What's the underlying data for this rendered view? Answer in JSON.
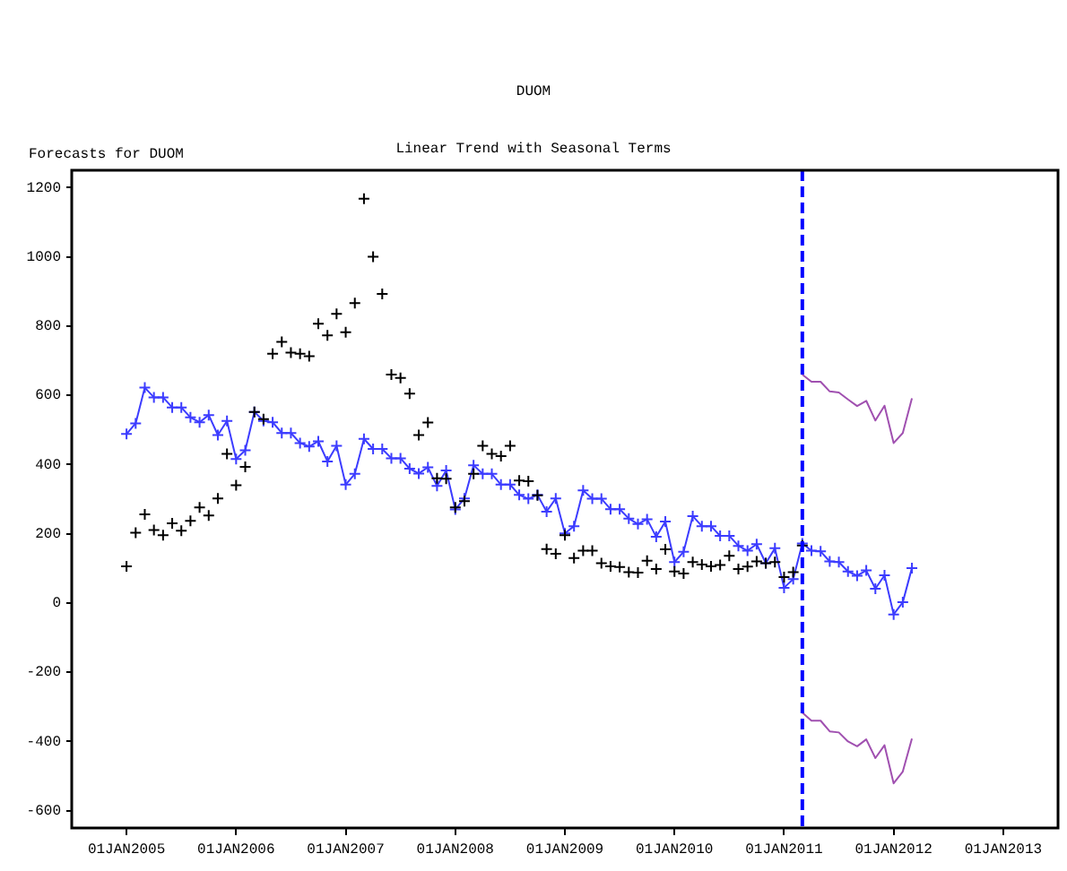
{
  "chart_data": {
    "type": "line",
    "title": "DUOM",
    "subtitle": "Linear Trend with Seasonal Terms",
    "ylabel": "Forecasts for DUOM",
    "x": [
      "2005-01",
      "2005-02",
      "2005-03",
      "2005-04",
      "2005-05",
      "2005-06",
      "2005-07",
      "2005-08",
      "2005-09",
      "2005-10",
      "2005-11",
      "2005-12",
      "2006-01",
      "2006-02",
      "2006-03",
      "2006-04",
      "2006-05",
      "2006-06",
      "2006-07",
      "2006-08",
      "2006-09",
      "2006-10",
      "2006-11",
      "2006-12",
      "2007-01",
      "2007-02",
      "2007-03",
      "2007-04",
      "2007-05",
      "2007-06",
      "2007-07",
      "2007-08",
      "2007-09",
      "2007-10",
      "2007-11",
      "2007-12",
      "2008-01",
      "2008-02",
      "2008-03",
      "2008-04",
      "2008-05",
      "2008-06",
      "2008-07",
      "2008-08",
      "2008-09",
      "2008-10",
      "2008-11",
      "2008-12",
      "2009-01",
      "2009-02",
      "2009-03",
      "2009-04",
      "2009-05",
      "2009-06",
      "2009-07",
      "2009-08",
      "2009-09",
      "2009-10",
      "2009-11",
      "2009-12",
      "2010-01",
      "2010-02",
      "2010-03",
      "2010-04",
      "2010-05",
      "2010-06",
      "2010-07",
      "2010-08",
      "2010-09",
      "2010-10",
      "2010-11",
      "2010-12",
      "2011-01",
      "2011-02",
      "2011-03",
      "2011-04",
      "2011-05",
      "2011-06",
      "2011-07",
      "2011-08",
      "2011-09",
      "2011-10",
      "2011-11",
      "2011-12",
      "2012-01",
      "2012-02",
      "2012-03"
    ],
    "series": [
      {
        "type": "scatter",
        "marker": "cross",
        "color": "#000000",
        "values": [
          106,
          203,
          256,
          211,
          196,
          230,
          209,
          237,
          276,
          253,
          302,
          431,
          340,
          393,
          552,
          531,
          720,
          754,
          723,
          720,
          713,
          807,
          773,
          835,
          782,
          866,
          1168,
          1000,
          893,
          660,
          650,
          605,
          485,
          521,
          360,
          359,
          276,
          294,
          373,
          454,
          431,
          424,
          454,
          354,
          352,
          311,
          156,
          142,
          196,
          130,
          151,
          151,
          115,
          106,
          104,
          89,
          88,
          122,
          98,
          155,
          91,
          85,
          118,
          111,
          106,
          110,
          136,
          98,
          105,
          120,
          115,
          118,
          75,
          89,
          166,
          null,
          null,
          null,
          null,
          null,
          null,
          null,
          null,
          null,
          null,
          null,
          null
        ]
      },
      {
        "marker": "cross",
        "line_style": "solid",
        "color": "#3c3cff",
        "values": [
          488,
          519,
          622,
          594,
          594,
          565,
          565,
          536,
          522,
          543,
          485,
          526,
          416,
          441,
          552,
          526,
          522,
          491,
          491,
          462,
          452,
          467,
          409,
          454,
          342,
          373,
          474,
          445,
          445,
          418,
          418,
          388,
          374,
          392,
          338,
          383,
          270,
          302,
          398,
          373,
          373,
          342,
          342,
          312,
          301,
          312,
          264,
          302,
          201,
          222,
          325,
          301,
          301,
          271,
          271,
          244,
          228,
          242,
          191,
          235,
          118,
          148,
          251,
          222,
          222,
          194,
          194,
          165,
          151,
          170,
          115,
          158,
          44,
          69,
          172,
          151,
          149,
          120,
          118,
          91,
          79,
          94,
          41,
          80,
          -33,
          2,
          101
        ]
      },
      {
        "marker": "none",
        "line_style": "solid",
        "color": "#a050b0",
        "x": [
          "2011-03",
          "2011-04",
          "2011-05",
          "2011-06",
          "2011-07",
          "2011-08",
          "2011-09",
          "2011-10",
          "2011-11",
          "2011-12",
          "2012-01",
          "2012-02",
          "2012-03"
        ],
        "values": [
          660,
          639,
          639,
          611,
          608,
          588,
          569,
          584,
          527,
          570,
          462,
          491,
          591
        ]
      },
      {
        "marker": "none",
        "line_style": "solid",
        "color": "#a050b0",
        "x": [
          "2011-03",
          "2011-04",
          "2011-05",
          "2011-06",
          "2011-07",
          "2011-08",
          "2011-09",
          "2011-10",
          "2011-11",
          "2011-12",
          "2012-01",
          "2012-02",
          "2012-03"
        ],
        "values": [
          -317,
          -340,
          -340,
          -371,
          -374,
          -400,
          -414,
          -394,
          -448,
          -411,
          -521,
          -487,
          -392
        ]
      }
    ],
    "xlim": [
      "2004-07",
      "2013-07"
    ],
    "xticks": [
      {
        "value": "2005-01",
        "label": "01JAN2005"
      },
      {
        "value": "2006-01",
        "label": "01JAN2006"
      },
      {
        "value": "2007-01",
        "label": "01JAN2007"
      },
      {
        "value": "2008-01",
        "label": "01JAN2008"
      },
      {
        "value": "2009-01",
        "label": "01JAN2009"
      },
      {
        "value": "2010-01",
        "label": "01JAN2010"
      },
      {
        "value": "2011-01",
        "label": "01JAN2011"
      },
      {
        "value": "2012-01",
        "label": "01JAN2012"
      },
      {
        "value": "2013-01",
        "label": "01JAN2013"
      }
    ],
    "ylim": [
      -650,
      1250
    ],
    "yticks": [
      -600,
      -400,
      -200,
      0,
      200,
      400,
      600,
      800,
      1000,
      1200
    ],
    "ref_lines": [
      {
        "axis": "x",
        "value": "2011-03",
        "color": "#0000ff",
        "line_style": "dashed"
      }
    ],
    "grid": false,
    "legend": false
  }
}
